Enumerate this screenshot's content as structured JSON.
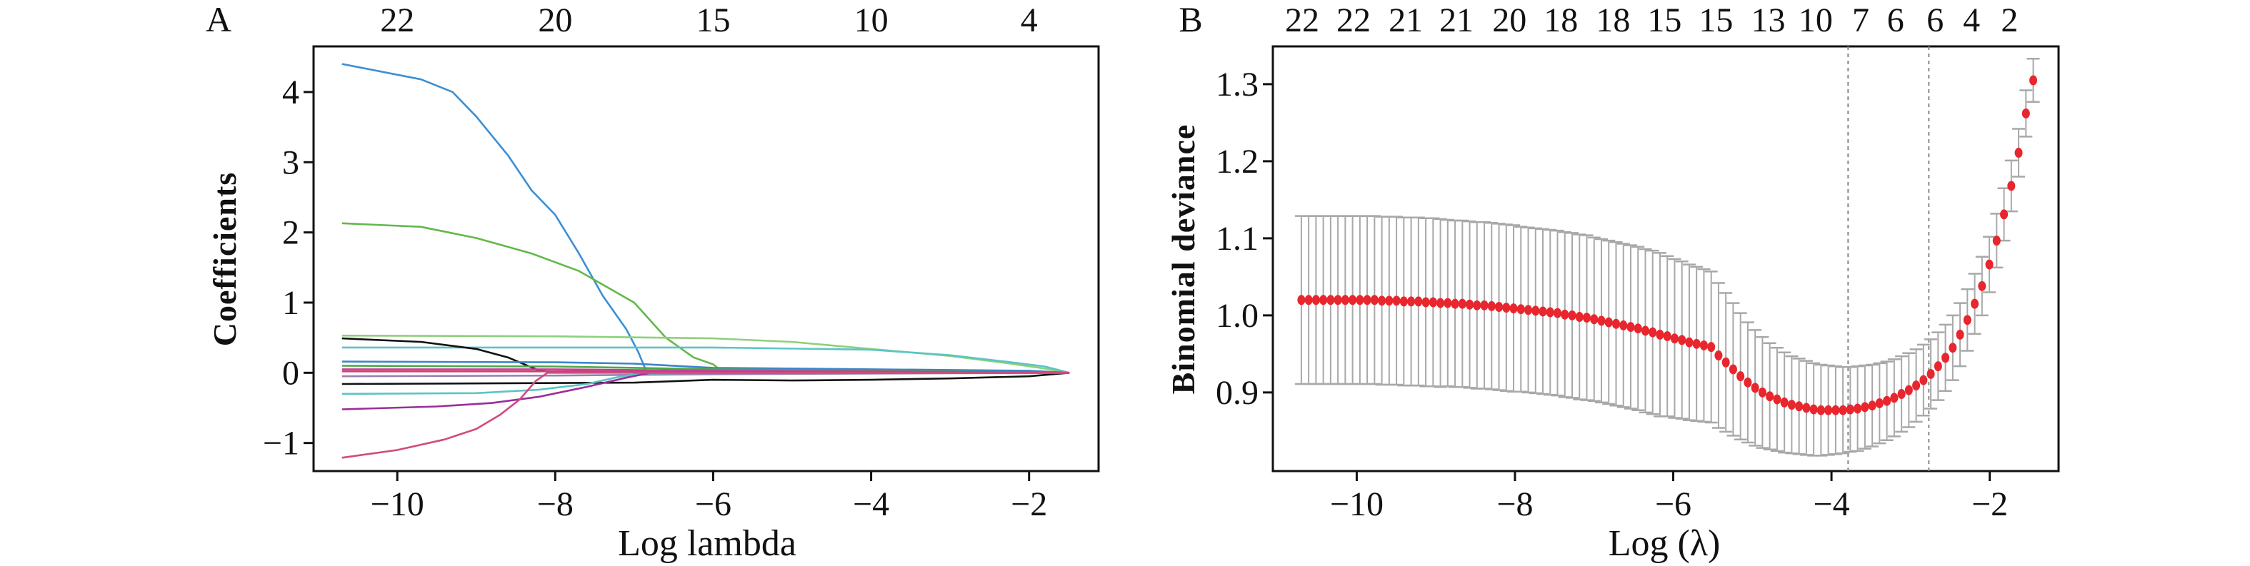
{
  "chart_data": [
    {
      "type": "line",
      "panel_label": "A",
      "title": "",
      "xlabel": "Log lambda",
      "ylabel": "Coefficients",
      "xlim": [
        -11.06,
        -1.12
      ],
      "ylim": [
        -1.4,
        4.65
      ],
      "xticks": [
        -10,
        -8,
        -6,
        -4,
        -2
      ],
      "xtick_labels": [
        "−10",
        "−8",
        "−6",
        "−4",
        "−2"
      ],
      "yticks": [
        -1,
        0,
        1,
        2,
        3,
        4
      ],
      "ytick_labels": [
        "−1",
        "0",
        "1",
        "2",
        "3",
        "4"
      ],
      "top_axis": {
        "positions": [
          -10,
          -8,
          -6,
          -4,
          -2
        ],
        "labels": [
          "22",
          "20",
          "15",
          "10",
          "4"
        ]
      },
      "grid": false,
      "series": [
        {
          "name": "path-1",
          "color": "#3b8fd4",
          "x": [
            -10.7,
            -9.7,
            -9.3,
            -9.0,
            -8.6,
            -8.3,
            -8.0,
            -7.7,
            -7.4,
            -7.1,
            -6.95,
            -6.85,
            -6.5,
            -4,
            -1.49
          ],
          "y": [
            4.4,
            4.18,
            4.0,
            3.65,
            3.1,
            2.6,
            2.25,
            1.7,
            1.1,
            0.62,
            0.3,
            0.03,
            0.02,
            0.01,
            0
          ]
        },
        {
          "name": "path-2",
          "color": "#62b84a",
          "x": [
            -10.7,
            -9.7,
            -9.0,
            -8.3,
            -7.7,
            -7.0,
            -6.6,
            -6.25,
            -6.0,
            -5.9,
            -4,
            -1.49
          ],
          "y": [
            2.13,
            2.08,
            1.92,
            1.7,
            1.45,
            1.0,
            0.5,
            0.22,
            0.12,
            0.03,
            0.02,
            0
          ]
        },
        {
          "name": "path-3",
          "color": "#8fd07a",
          "x": [
            -10.7,
            -8,
            -6,
            -5,
            -4,
            -3,
            -2.3,
            -1.8,
            -1.49
          ],
          "y": [
            0.53,
            0.52,
            0.49,
            0.44,
            0.34,
            0.24,
            0.14,
            0.06,
            0
          ]
        },
        {
          "name": "path-4",
          "color": "#5cc4c4",
          "x": [
            -10.7,
            -6,
            -4,
            -3,
            -2.3,
            -1.8,
            -1.49
          ],
          "y": [
            0.36,
            0.36,
            0.33,
            0.25,
            0.16,
            0.09,
            0
          ]
        },
        {
          "name": "path-5",
          "color": "#111111",
          "x": [
            -10.7,
            -9.7,
            -9.0,
            -8.6,
            -8.2,
            -8.1,
            -6,
            -1.49
          ],
          "y": [
            0.49,
            0.44,
            0.34,
            0.22,
            0.03,
            0.02,
            0.01,
            0
          ]
        },
        {
          "name": "path-6",
          "color": "#111111",
          "x": [
            -10.7,
            -7,
            -6,
            -5,
            -4,
            -3,
            -2,
            -1.49
          ],
          "y": [
            -0.16,
            -0.14,
            -0.1,
            -0.11,
            -0.1,
            -0.08,
            -0.05,
            0
          ]
        },
        {
          "name": "path-7",
          "color": "#3a86c8",
          "x": [
            -10.7,
            -8,
            -7,
            -6,
            -4,
            -2,
            -1.49
          ],
          "y": [
            0.16,
            0.15,
            0.13,
            0.07,
            0.05,
            0.03,
            0
          ]
        },
        {
          "name": "path-8",
          "color": "#4aa84a",
          "x": [
            -10.7,
            -8,
            -6,
            -4,
            -1.49
          ],
          "y": [
            0.1,
            0.09,
            0.05,
            0.03,
            0
          ]
        },
        {
          "name": "path-9",
          "color": "#c2409a",
          "x": [
            -10.7,
            -8,
            -6,
            -4,
            -1.49
          ],
          "y": [
            0.05,
            0.05,
            0.03,
            0.02,
            0
          ]
        },
        {
          "name": "path-10",
          "color": "#d2406e",
          "x": [
            -10.7,
            -8,
            -6,
            -1.49
          ],
          "y": [
            0.02,
            0.02,
            0.01,
            0
          ]
        },
        {
          "name": "path-11",
          "color": "#9a7fb0",
          "x": [
            -10.7,
            -8,
            -6,
            -1.49
          ],
          "y": [
            -0.05,
            -0.04,
            -0.02,
            0
          ]
        },
        {
          "name": "path-12",
          "color": "#5cc4c4",
          "x": [
            -10.7,
            -9,
            -8.2,
            -7.6,
            -7.2,
            -6.9,
            -6,
            -1.49
          ],
          "y": [
            -0.3,
            -0.29,
            -0.24,
            -0.16,
            -0.06,
            -0.01,
            0,
            0
          ]
        },
        {
          "name": "path-13",
          "color": "#9a2e9a",
          "x": [
            -10.7,
            -9.5,
            -8.8,
            -8.2,
            -7.6,
            -7.1,
            -6.8,
            -1.49
          ],
          "y": [
            -0.52,
            -0.48,
            -0.43,
            -0.34,
            -0.2,
            -0.07,
            0,
            0
          ]
        },
        {
          "name": "path-14",
          "color": "#d24a7c",
          "x": [
            -10.7,
            -10.0,
            -9.4,
            -9.0,
            -8.7,
            -8.45,
            -8.25,
            -8.1,
            -1.49
          ],
          "y": [
            -1.21,
            -1.1,
            -0.95,
            -0.8,
            -0.6,
            -0.38,
            -0.12,
            0,
            0
          ]
        }
      ]
    },
    {
      "type": "scatter",
      "panel_label": "B",
      "title": "",
      "xlabel": "Log (λ)",
      "ylabel": "Binomial deviance",
      "xlim": [
        -11.06,
        -1.13
      ],
      "ylim": [
        0.798,
        1.349
      ],
      "xticks": [
        -10,
        -8,
        -6,
        -4,
        -2
      ],
      "xtick_labels": [
        "−10",
        "−8",
        "−6",
        "−4",
        "−2"
      ],
      "yticks": [
        0.9,
        1.0,
        1.1,
        1.2,
        1.3
      ],
      "ytick_labels": [
        "0.9",
        "1.0",
        "1.1",
        "1.2",
        "1.3"
      ],
      "top_axis": {
        "positions": [
          -10.69,
          -10.04,
          -9.38,
          -8.74,
          -8.07,
          -7.42,
          -6.76,
          -6.11,
          -5.46,
          -4.8,
          -4.2,
          -3.63,
          -3.19,
          -2.69,
          -2.23,
          -1.75
        ],
        "labels": [
          "22",
          "22",
          "21",
          "21",
          "20",
          "18",
          "18",
          "15",
          "15",
          "13",
          "10",
          "7",
          "6",
          "6",
          "4",
          "2"
        ]
      },
      "vlines": [
        -3.79,
        -2.77
      ],
      "grid": false,
      "point_color": "#e8262e",
      "errorbar_color": "#a8a8a8",
      "x_start": -10.7,
      "x_step": 0.0925,
      "mean": [
        1.02,
        1.02,
        1.02,
        1.02,
        1.02,
        1.02,
        1.02,
        1.02,
        1.02,
        1.02,
        1.02,
        1.019,
        1.019,
        1.019,
        1.018,
        1.018,
        1.018,
        1.017,
        1.017,
        1.016,
        1.016,
        1.015,
        1.015,
        1.014,
        1.013,
        1.013,
        1.012,
        1.011,
        1.01,
        1.009,
        1.008,
        1.007,
        1.006,
        1.005,
        1.004,
        1.003,
        1.001,
        1.0,
        0.998,
        0.997,
        0.995,
        0.993,
        0.991,
        0.989,
        0.987,
        0.985,
        0.983,
        0.98,
        0.978,
        0.975,
        0.973,
        0.97,
        0.968,
        0.965,
        0.963,
        0.961,
        0.959,
        0.948,
        0.939,
        0.93,
        0.921,
        0.913,
        0.906,
        0.9,
        0.895,
        0.891,
        0.887,
        0.884,
        0.882,
        0.88,
        0.878,
        0.877,
        0.877,
        0.877,
        0.877,
        0.878,
        0.879,
        0.881,
        0.883,
        0.886,
        0.889,
        0.893,
        0.898,
        0.903,
        0.909,
        0.916,
        0.924,
        0.934,
        0.945,
        0.958,
        0.975,
        0.994,
        1.015,
        1.038,
        1.066,
        1.097,
        1.131,
        1.168,
        1.211,
        1.262,
        1.305
      ],
      "se": [
        0.109,
        0.109,
        0.109,
        0.109,
        0.109,
        0.109,
        0.109,
        0.109,
        0.109,
        0.109,
        0.109,
        0.109,
        0.109,
        0.109,
        0.109,
        0.109,
        0.109,
        0.109,
        0.109,
        0.109,
        0.108,
        0.108,
        0.108,
        0.108,
        0.108,
        0.108,
        0.108,
        0.108,
        0.108,
        0.108,
        0.107,
        0.107,
        0.107,
        0.107,
        0.107,
        0.107,
        0.107,
        0.107,
        0.107,
        0.107,
        0.106,
        0.106,
        0.106,
        0.106,
        0.106,
        0.106,
        0.106,
        0.106,
        0.106,
        0.106,
        0.104,
        0.103,
        0.102,
        0.101,
        0.1,
        0.099,
        0.098,
        0.094,
        0.09,
        0.086,
        0.082,
        0.078,
        0.075,
        0.072,
        0.069,
        0.067,
        0.065,
        0.063,
        0.062,
        0.061,
        0.06,
        0.059,
        0.058,
        0.057,
        0.056,
        0.055,
        0.055,
        0.054,
        0.053,
        0.052,
        0.051,
        0.05,
        0.049,
        0.048,
        0.047,
        0.046,
        0.045,
        0.044,
        0.043,
        0.042,
        0.041,
        0.04,
        0.039,
        0.038,
        0.036,
        0.035,
        0.034,
        0.033,
        0.031,
        0.03,
        0.028
      ]
    }
  ]
}
